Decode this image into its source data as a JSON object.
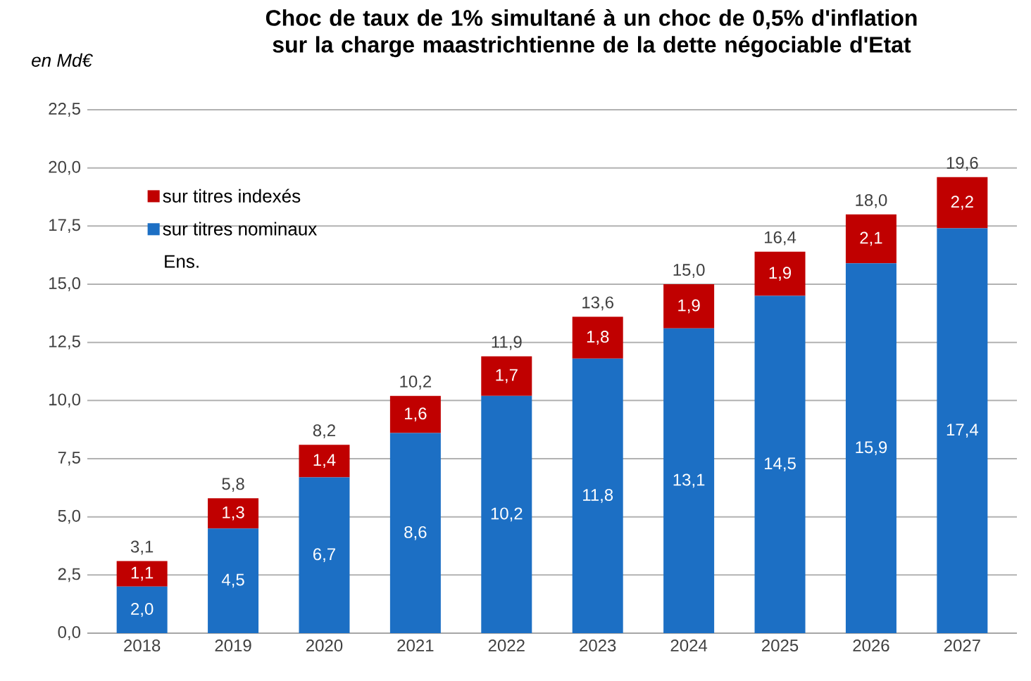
{
  "chart_data": {
    "type": "bar",
    "stacked": true,
    "title": "Choc de taux de 1% simultané à un choc de 0,5% d'inflation sur la charge maastrichtienne de la dette négociable d'Etat",
    "ylabel": "en Md€",
    "categories": [
      "2018",
      "2019",
      "2020",
      "2021",
      "2022",
      "2023",
      "2024",
      "2025",
      "2026",
      "2027"
    ],
    "series": [
      {
        "name": "sur titres nominaux",
        "color": "#1c6fc4",
        "values": [
          2.0,
          4.5,
          6.7,
          8.6,
          10.2,
          11.8,
          13.1,
          14.5,
          15.9,
          17.4
        ],
        "value_labels": [
          "2,0",
          "4,5",
          "6,7",
          "8,6",
          "10,2",
          "11,8",
          "13,1",
          "14,5",
          "15,9",
          "17,4"
        ]
      },
      {
        "name": "sur titres indexés",
        "color": "#c00000",
        "values": [
          1.1,
          1.3,
          1.4,
          1.6,
          1.7,
          1.8,
          1.9,
          1.9,
          2.1,
          2.2
        ],
        "value_labels": [
          "1,1",
          "1,3",
          "1,4",
          "1,6",
          "1,7",
          "1,8",
          "1,9",
          "1,9",
          "2,1",
          "2,2"
        ]
      }
    ],
    "totals": [
      "3,1",
      "5,8",
      "8,2",
      "10,2",
      "11,9",
      "13,6",
      "15,0",
      "16,4",
      "18,0",
      "19,6"
    ],
    "annotations": [
      "Ens."
    ],
    "ylim": [
      0,
      22.5
    ],
    "yticks": [
      {
        "value": 0,
        "label": "0,0"
      },
      {
        "value": 2.5,
        "label": "2,5"
      },
      {
        "value": 5,
        "label": "5,0"
      },
      {
        "value": 7.5,
        "label": "7,5"
      },
      {
        "value": 10,
        "label": "10,0"
      },
      {
        "value": 12.5,
        "label": "12,5"
      },
      {
        "value": 15,
        "label": "15,0"
      },
      {
        "value": 17.5,
        "label": "17,5"
      },
      {
        "value": 20,
        "label": "20,0"
      },
      {
        "value": 22.5,
        "label": "22,5"
      }
    ],
    "grid": "y",
    "legend": "top left"
  }
}
